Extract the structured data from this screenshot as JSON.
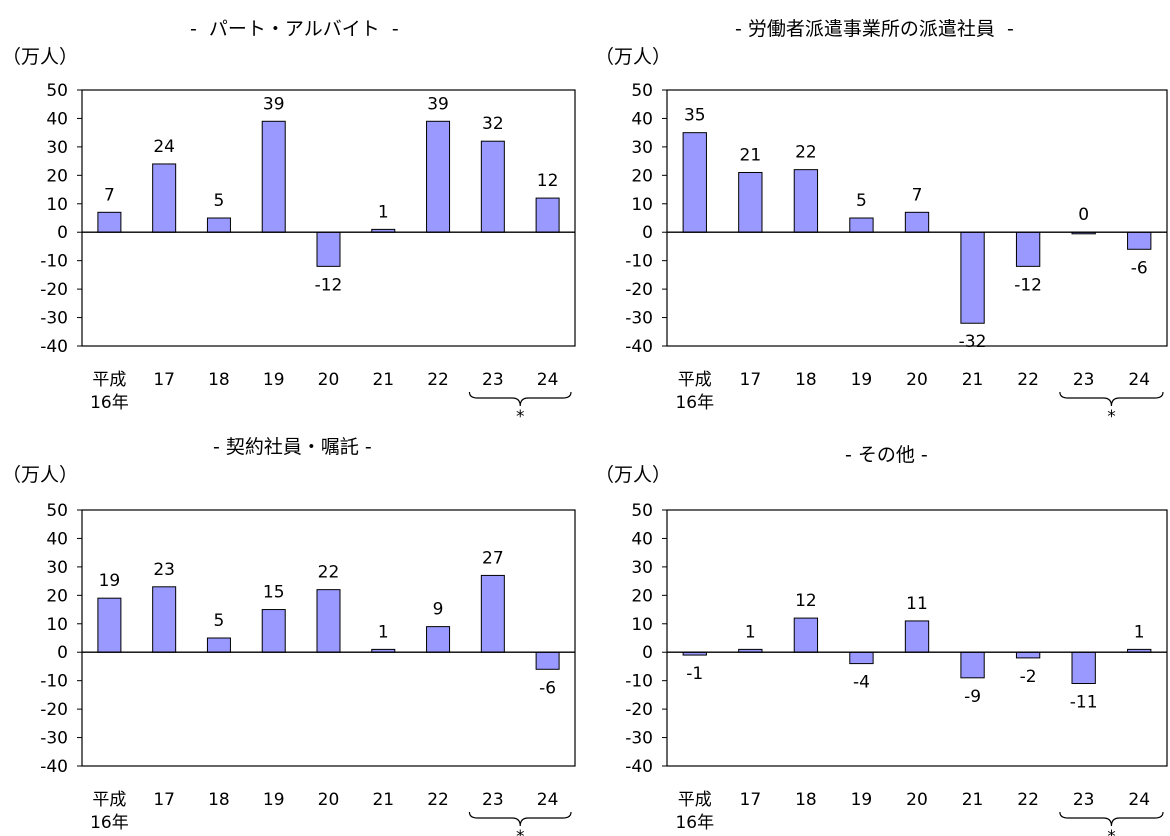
{
  "colors": {
    "bar": "#9999ff",
    "stroke": "#000000"
  },
  "x_labels": [
    "平成",
    "17",
    "18",
    "19",
    "20",
    "21",
    "22",
    "23",
    "24"
  ],
  "first_label_sub": "16年",
  "bracket_mark": "*",
  "chart_data": [
    {
      "type": "bar",
      "title": "-  パート・アルバイト  -",
      "ylabel": "（万人）",
      "ylim": [
        -40,
        50
      ],
      "yticks": [
        "50",
        "40",
        "30",
        "20",
        "10",
        "0",
        "-10",
        "-20",
        "-30",
        "-40"
      ],
      "categories": [
        "平成16年",
        "17",
        "18",
        "19",
        "20",
        "21",
        "22",
        "23",
        "24"
      ],
      "values": [
        7,
        24,
        5,
        39,
        -12,
        1,
        39,
        32,
        12
      ],
      "data_labels": [
        "7",
        "24",
        "5",
        "39",
        "-12",
        "1",
        "39",
        "32",
        "12"
      ],
      "grid": false
    },
    {
      "type": "bar",
      "title": "- 労働者派遣事業所の派遣社員  -",
      "ylabel": "（万人）",
      "ylim": [
        -40,
        50
      ],
      "yticks": [
        "50",
        "40",
        "30",
        "20",
        "10",
        "0",
        "-10",
        "-20",
        "-30",
        "-40"
      ],
      "categories": [
        "平成16年",
        "17",
        "18",
        "19",
        "20",
        "21",
        "22",
        "23",
        "24"
      ],
      "values": [
        35,
        21,
        22,
        5,
        7,
        -32,
        -12,
        0,
        -6
      ],
      "data_labels": [
        "35",
        "21",
        "22",
        "5",
        "7",
        "-32",
        "-12",
        "0",
        "-6"
      ],
      "grid": false
    },
    {
      "type": "bar",
      "title": "- 契約社員・嘱託 -",
      "ylabel": "（万人）",
      "ylim": [
        -40,
        50
      ],
      "yticks": [
        "50",
        "40",
        "30",
        "20",
        "10",
        "0",
        "-10",
        "-20",
        "-30",
        "-40"
      ],
      "categories": [
        "平成16年",
        "17",
        "18",
        "19",
        "20",
        "21",
        "22",
        "23",
        "24"
      ],
      "values": [
        19,
        23,
        5,
        15,
        22,
        1,
        9,
        27,
        -6
      ],
      "data_labels": [
        "19",
        "23",
        "5",
        "15",
        "22",
        "1",
        "9",
        "27",
        "-6"
      ],
      "grid": false
    },
    {
      "type": "bar",
      "title": "- その他 -",
      "ylabel": "（万人）",
      "ylim": [
        -40,
        50
      ],
      "yticks": [
        "50",
        "40",
        "30",
        "20",
        "10",
        "0",
        "-10",
        "-20",
        "-30",
        "-40"
      ],
      "categories": [
        "平成16年",
        "17",
        "18",
        "19",
        "20",
        "21",
        "22",
        "23",
        "24"
      ],
      "values": [
        -1,
        1,
        12,
        -4,
        11,
        -9,
        -2,
        -11,
        1
      ],
      "data_labels": [
        "-1",
        "1",
        "12",
        "-4",
        "11",
        "-9",
        "-2",
        "-11",
        "1"
      ],
      "grid": false
    }
  ]
}
